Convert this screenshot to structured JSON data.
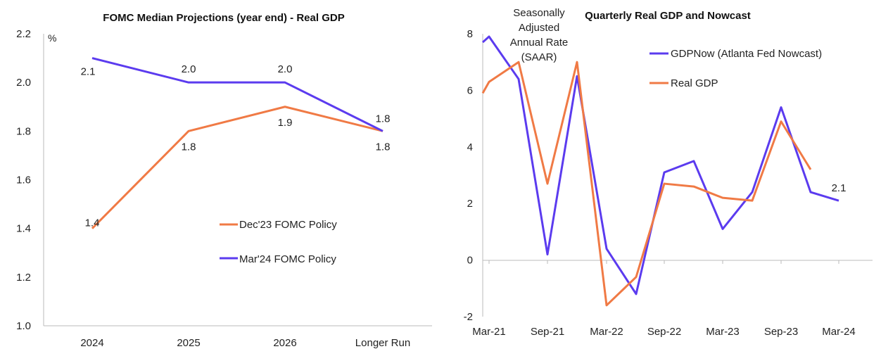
{
  "chart_data": [
    {
      "type": "line",
      "title": "FOMC Median Projections (year end) - Real GDP",
      "ylabel": "%",
      "xlabel": "",
      "ylim": [
        1.0,
        2.2
      ],
      "yticks": [
        "1.0",
        "1.2",
        "1.4",
        "1.6",
        "1.8",
        "2.0",
        "2.2"
      ],
      "categories": [
        "2024",
        "2025",
        "2026",
        "Longer Run"
      ],
      "grid": false,
      "legend_position": "center-right",
      "series": [
        {
          "name": "Dec'23 FOMC Policy",
          "color": "#F07A45",
          "values": [
            1.4,
            1.8,
            1.9,
            1.8
          ],
          "labels": [
            "1.4",
            "1.8",
            "1.9",
            "1.8"
          ]
        },
        {
          "name": "Mar'24 FOMC Policy",
          "color": "#5B3BEF",
          "values": [
            2.1,
            2.0,
            2.0,
            1.8
          ],
          "labels": [
            "2.1",
            "2.0",
            "2.0",
            "1.8"
          ]
        }
      ]
    },
    {
      "type": "line",
      "title": "Quarterly Real GDP and Nowcast",
      "annotation": "Seasonally Adjusted Annual Rate (SAAR)",
      "xlabel": "",
      "ylabel": "",
      "ylim": [
        -2,
        8
      ],
      "yticks": [
        "-2",
        "0",
        "2",
        "4",
        "6",
        "8"
      ],
      "xtick_labels": [
        "Mar-21",
        "Sep-21",
        "Mar-22",
        "Sep-22",
        "Mar-23",
        "Sep-23",
        "Mar-24"
      ],
      "x_dates": [
        "Mar-21",
        "Apr-21",
        "Jun-21",
        "Sep-21",
        "Dec-21",
        "Mar-22",
        "Jun-22",
        "Sep-22",
        "Dec-22",
        "Mar-23",
        "Jun-23",
        "Sep-23",
        "Dec-23",
        "Mar-24"
      ],
      "grid": false,
      "legend_position": "top-right",
      "end_label": "2.1",
      "series": [
        {
          "name": "GDPNow (Atlanta Fed Nowcast)",
          "color": "#5B3BEF",
          "values": [
            7.7,
            7.9,
            6.4,
            0.2,
            6.5,
            0.4,
            -1.2,
            3.1,
            3.5,
            1.1,
            2.4,
            5.4,
            2.4,
            2.1
          ]
        },
        {
          "name": "Real GDP",
          "color": "#F07A45",
          "values": [
            5.9,
            6.3,
            7.0,
            2.7,
            7.0,
            -1.6,
            -0.6,
            2.7,
            2.6,
            2.2,
            2.1,
            4.9,
            3.2,
            null
          ]
        }
      ]
    }
  ]
}
